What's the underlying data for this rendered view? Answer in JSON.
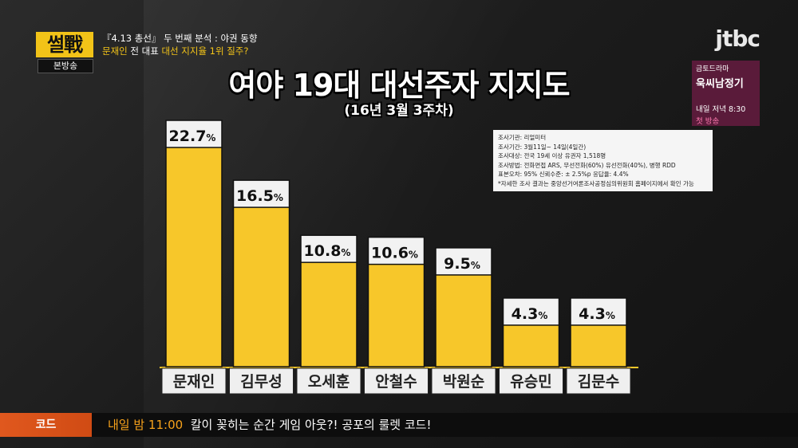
{
  "show": {
    "logo": "썰戰",
    "logo_sub": "본방송",
    "topic_line1": "『4.13 총선』 두 번째 분석 : 야권 동향",
    "topic_line2_a": "문재인",
    "topic_line2_b": " 전 대표 ",
    "topic_line2_c": "대선 지지율 1위 질주?",
    "channel": "jtbc"
  },
  "promo": {
    "line1": "금토드라마",
    "line2": "욱씨남정기",
    "line3": "내일 저녁 8:30",
    "line4": "첫 방송"
  },
  "info": [
    "조사기관:  리얼미터",
    "조사기간:  3월11일~ 14일(4일간)",
    "조사대상:  전국 19세 이상 유권자 1,518명",
    "조사방법:  전화면접 ARS, 무선전화(60%) 유선전화(40%), 병행 RDD",
    "표본오차:  95%    신뢰수준: ± 2.5%p    응답율: 4.4%",
    "*자세한 조사 결과는 중앙선거여론조사공정심의위원회 홈페이지에서 확인 가능"
  ],
  "footer": {
    "tag": "코드",
    "time": "내일 밤 11:00",
    "text": "칼이 꽂히는 순간 게임 아웃?! 공포의 룰렛 코드!"
  },
  "chart_data": {
    "type": "bar",
    "title": "여야 19대 대선주자 지지도",
    "subtitle": "(16년 3월 3주차)",
    "categories": [
      "문재인",
      "김무성",
      "오세훈",
      "안철수",
      "박원순",
      "유승민",
      "김문수"
    ],
    "values": [
      22.7,
      16.5,
      10.8,
      10.6,
      9.5,
      4.3,
      4.3
    ],
    "labels": [
      "22.7",
      "16.5",
      "10.8",
      "10.6",
      "9.5",
      "4.3",
      "4.3"
    ],
    "unit": "%",
    "ylim": [
      0,
      25
    ],
    "bar_color": "#f7c72a"
  }
}
